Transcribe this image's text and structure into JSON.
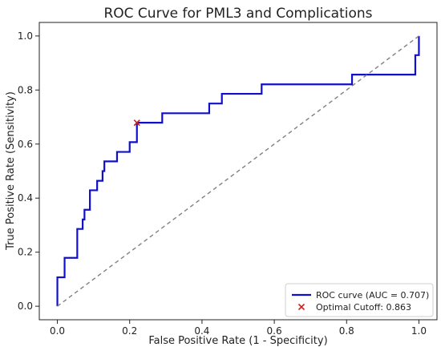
{
  "colors": {
    "roc_line": "#1010cc",
    "diagonal": "#808080",
    "optimal_marker": "#cc1f1f",
    "axis": "#222222",
    "legend_border": "#cfcfcf"
  },
  "chart_data": {
    "type": "line",
    "title": "ROC Curve for PML3 and Complications",
    "xlabel": "False Positive Rate (1 - Specificity)",
    "ylabel": "True Positive Rate (Sensitivity)",
    "xlim": [
      -0.05,
      1.05
    ],
    "ylim": [
      -0.05,
      1.05
    ],
    "grid": false,
    "xticks": [
      0.0,
      0.2,
      0.4,
      0.6,
      0.8,
      1.0
    ],
    "xtick_labels": [
      "0.0",
      "0.2",
      "0.4",
      "0.6",
      "0.8",
      "1.0"
    ],
    "yticks": [
      0.0,
      0.2,
      0.4,
      0.6,
      0.8,
      1.0
    ],
    "ytick_labels": [
      "0.0",
      "0.2",
      "0.4",
      "0.6",
      "0.8",
      "1.0"
    ],
    "legend_position": "lower-right",
    "series": [
      {
        "name": "ROC curve (AUC = 0.707)",
        "style": "solid",
        "x": [
          0.0,
          0.0,
          0.005,
          0.005,
          0.02,
          0.02,
          0.055,
          0.055,
          0.07,
          0.07,
          0.075,
          0.075,
          0.09,
          0.09,
          0.11,
          0.11,
          0.125,
          0.125,
          0.13,
          0.13,
          0.165,
          0.165,
          0.2,
          0.2,
          0.22,
          0.22,
          0.29,
          0.29,
          0.42,
          0.42,
          0.455,
          0.455,
          0.565,
          0.565,
          0.815,
          0.815,
          0.99,
          0.99,
          1.0,
          1.0
        ],
        "y": [
          0.0,
          0.107,
          0.107,
          0.107,
          0.107,
          0.179,
          0.179,
          0.286,
          0.286,
          0.321,
          0.321,
          0.357,
          0.357,
          0.429,
          0.429,
          0.464,
          0.464,
          0.5,
          0.5,
          0.536,
          0.536,
          0.571,
          0.571,
          0.607,
          0.607,
          0.679,
          0.679,
          0.714,
          0.714,
          0.75,
          0.75,
          0.786,
          0.786,
          0.821,
          0.821,
          0.857,
          0.857,
          0.929,
          0.929,
          1.0
        ]
      },
      {
        "name": "",
        "style": "dashed",
        "x": [
          0.0,
          1.0
        ],
        "y": [
          0.0,
          1.0
        ]
      }
    ],
    "markers": [
      {
        "name": "Optimal Cutoff: 0.863",
        "marker": "x",
        "x": 0.22,
        "y": 0.679
      }
    ],
    "legend": [
      {
        "label": "ROC curve (AUC = 0.707)",
        "kind": "line"
      },
      {
        "label": "Optimal Cutoff: 0.863",
        "kind": "x-marker"
      }
    ]
  }
}
